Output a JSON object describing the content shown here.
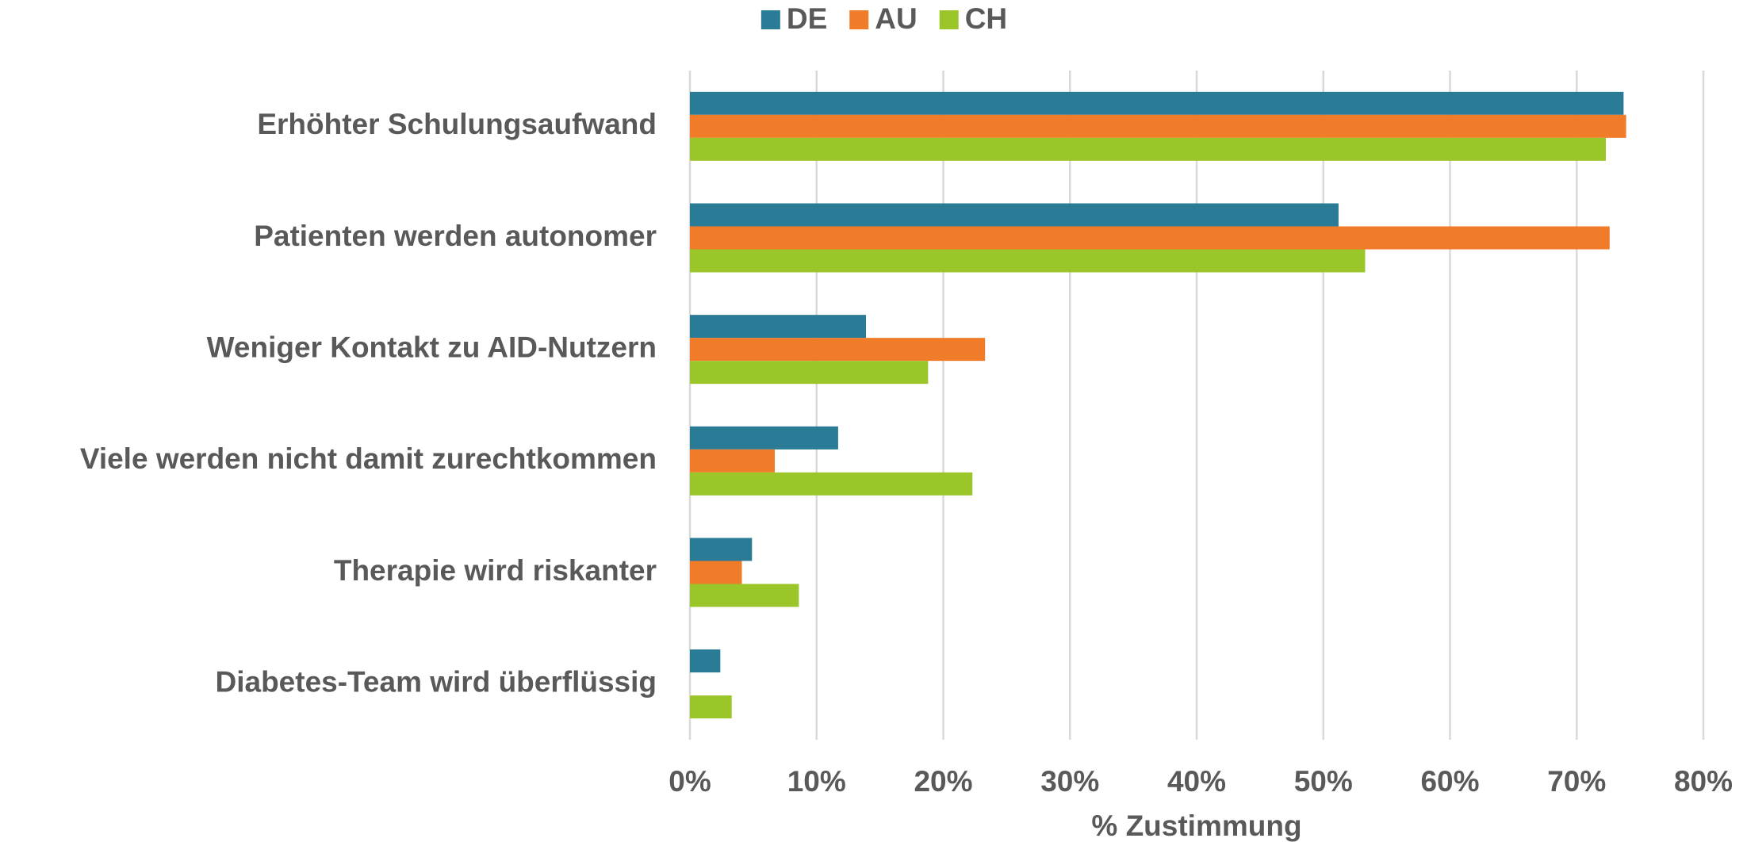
{
  "chart_data": {
    "type": "hbar",
    "xlabel": "% Zustimmung",
    "categories": [
      "Erhöhter Schulungsaufwand",
      "Patienten werden autonomer",
      "Weniger Kontakt zu AID-Nutzern",
      "Viele werden nicht damit zurechtkommen",
      "Therapie wird riskanter",
      "Diabetes-Team wird überflüssig"
    ],
    "series": [
      {
        "name": "DE",
        "color": "#2a7b96",
        "values": [
          73.7,
          51.2,
          13.9,
          11.7,
          4.9,
          2.4
        ]
      },
      {
        "name": "AU",
        "color": "#f07c2a",
        "values": [
          73.9,
          72.6,
          23.3,
          6.7,
          4.1,
          0
        ]
      },
      {
        "name": "CH",
        "color": "#9bc62a",
        "values": [
          72.3,
          53.3,
          18.8,
          22.3,
          8.6,
          3.3
        ]
      }
    ],
    "xlim": [
      0,
      80
    ],
    "xticks": [
      {
        "value": 0,
        "label": "0%"
      },
      {
        "value": 10,
        "label": "10%"
      },
      {
        "value": 20,
        "label": "20%"
      },
      {
        "value": 30,
        "label": "30%"
      },
      {
        "value": 40,
        "label": "40%"
      },
      {
        "value": 50,
        "label": "50%"
      },
      {
        "value": 60,
        "label": "60%"
      },
      {
        "value": 70,
        "label": "70%"
      },
      {
        "value": 80,
        "label": "80%"
      }
    ],
    "grid": true,
    "legend": "top"
  }
}
